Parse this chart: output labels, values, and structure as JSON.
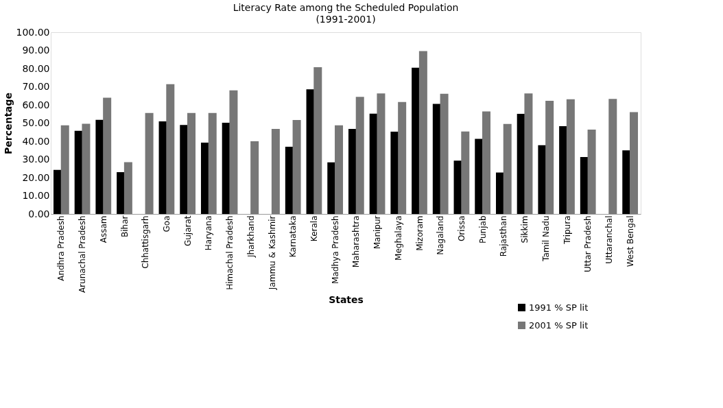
{
  "chart_data": {
    "type": "bar",
    "title": "Literacy Rate among the Scheduled Population",
    "subtitle": "(1991-2001)",
    "xlabel": "States",
    "ylabel": "Percentage",
    "categories": [
      "Andhra Pradesh",
      "Arunachal Pradesh",
      "Assam",
      "Bihar",
      "Chhattisgarh",
      "Goa",
      "Gujarat",
      "Haryana",
      "Himachal Pradesh",
      "Jharkhand",
      "Jammu & Kashmir",
      "Karnataka",
      "Kerala",
      "Madhya Pradesh",
      "Maharashtra",
      "Manipur",
      "Meghalaya",
      "Mizoram",
      "Nagaland",
      "Orissa",
      "Punjab",
      "Rajasthan",
      "Sikkim",
      "Tamil Nadu",
      "Tripura",
      "Uttar Pradesh",
      "Uttaranchal",
      "West Bengal"
    ],
    "series": [
      {
        "name": "1991 % SP lit",
        "color": "#000000",
        "values": [
          24.2,
          45.8,
          51.8,
          23.0,
          null,
          50.9,
          49.0,
          39.2,
          50.2,
          null,
          null,
          37.0,
          68.6,
          28.4,
          46.8,
          55.2,
          45.3,
          80.5,
          60.6,
          29.3,
          41.3,
          22.8,
          55.1,
          37.8,
          48.3,
          31.3,
          null,
          35.0
        ]
      },
      {
        "name": "2001 % SP lit",
        "color": "#777777",
        "values": [
          48.8,
          49.6,
          64.0,
          28.5,
          55.6,
          71.4,
          55.6,
          55.6,
          68.0,
          40.0,
          46.8,
          51.7,
          80.8,
          48.8,
          64.4,
          66.3,
          61.6,
          89.6,
          66.1,
          45.4,
          56.4,
          49.5,
          66.3,
          62.3,
          63.1,
          46.4,
          63.3,
          56.0
        ]
      }
    ],
    "ylim": [
      0,
      100
    ],
    "yticks": [
      {
        "value": 0,
        "label": "0.00"
      },
      {
        "value": 10,
        "label": "10.00"
      },
      {
        "value": 20,
        "label": "20.00"
      },
      {
        "value": 30,
        "label": "30.00"
      },
      {
        "value": 40,
        "label": "40.00"
      },
      {
        "value": 50,
        "label": "50.00"
      },
      {
        "value": 60,
        "label": "60.00"
      },
      {
        "value": 70,
        "label": "70.00"
      },
      {
        "value": 80,
        "label": "80.00"
      },
      {
        "value": 90,
        "label": "90.00"
      },
      {
        "value": 100,
        "label": "100.00"
      }
    ],
    "grid": false,
    "legend": "bottom right"
  }
}
